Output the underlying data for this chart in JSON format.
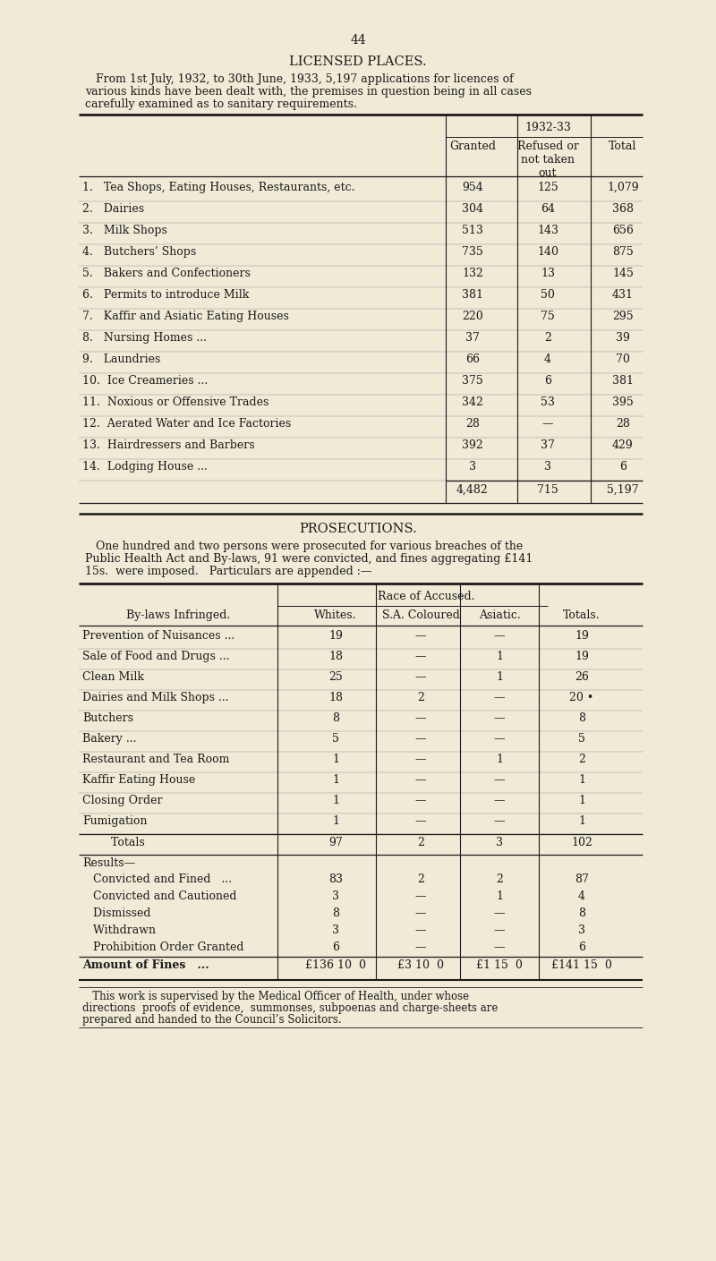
{
  "bg_color": "#f0ead6",
  "text_color": "#1a1a1a",
  "page_number": "44",
  "title1": "LICENSED PLACES.",
  "table1_year_header": "1932-33",
  "table1_rows": [
    [
      "1.   Tea Shops, Eating Houses, Restaurants, etc.",
      "954",
      "125",
      "1,079"
    ],
    [
      "2.   Dairies",
      "304",
      "64",
      "368"
    ],
    [
      "3.   Milk Shops",
      "513",
      "143",
      "656"
    ],
    [
      "4.   Butchers’ Shops",
      "735",
      "140",
      "875"
    ],
    [
      "5.   Bakers and Confectioners",
      "132",
      "13",
      "145"
    ],
    [
      "6.   Permits to introduce Milk",
      "381",
      "50",
      "431"
    ],
    [
      "7.   Kaffir and Asiatic Eating Houses",
      "220",
      "75",
      "295"
    ],
    [
      "8.   Nursing Homes ...",
      "37",
      "2",
      "39"
    ],
    [
      "9.   Laundries",
      "66",
      "4",
      "70"
    ],
    [
      "10.  Ice Creameries ...",
      "375",
      "6",
      "381"
    ],
    [
      "11.  Noxious or Offensive Trades",
      "342",
      "53",
      "395"
    ],
    [
      "12.  Aerated Water and Ice Factories",
      "28",
      "—",
      "28"
    ],
    [
      "13.  Hairdressers and Barbers",
      "392",
      "37",
      "429"
    ],
    [
      "14.  Lodging House ...",
      "3",
      "3",
      "6"
    ]
  ],
  "table1_totals": [
    "4,482",
    "715",
    "5,197"
  ],
  "title2": "PROSECUTIONS.",
  "table2_race_header": "Race of Accused.",
  "table2_col_headers": [
    "By-laws Infringed.",
    "Whites.",
    "S.A. Coloured",
    "Asiatic.",
    "Totals."
  ],
  "table2_rows": [
    [
      "Prevention of Nuisances ...",
      "19",
      "—",
      "—",
      "19"
    ],
    [
      "Sale of Food and Drugs ...",
      "18",
      "—",
      "1",
      "19"
    ],
    [
      "Clean Milk",
      "25",
      "—",
      "1",
      "26"
    ],
    [
      "Dairies and Milk Shops ...",
      "18",
      "2",
      "—",
      "20 •"
    ],
    [
      "Butchers",
      "8",
      "—",
      "—",
      "8"
    ],
    [
      "Bakery ...",
      "5",
      "—",
      "—",
      "5"
    ],
    [
      "Restaurant and Tea Room",
      "1",
      "—",
      "1",
      "2"
    ],
    [
      "Kaffir Eating House",
      "1",
      "—",
      "—",
      "1"
    ],
    [
      "Closing Order",
      "1",
      "—",
      "—",
      "1"
    ],
    [
      "Fumigation",
      "1",
      "—",
      "—",
      "1"
    ]
  ],
  "table2_totals_row": [
    "        Totals",
    "97",
    "2",
    "3",
    "102"
  ],
  "table2_results_label": "Results—",
  "table2_results_rows": [
    [
      "   Convicted and Fined   ...",
      "83",
      "2",
      "2",
      "87"
    ],
    [
      "   Convicted and Cautioned",
      "3",
      "—",
      "1",
      "4"
    ],
    [
      "   Dismissed",
      "8",
      "—",
      "—",
      "8"
    ],
    [
      "   Withdrawn",
      "3",
      "—",
      "—",
      "3"
    ],
    [
      "   Prohibition Order Granted",
      "6",
      "—",
      "—",
      "6"
    ]
  ],
  "table2_fines_label": "Amount of Fines   ...",
  "table2_fines_row": [
    "£136 10  0",
    "£3 10  0",
    "£1 15  0",
    "£141 15  0"
  ],
  "footer_lines": [
    "   This work is supervised by the Medical Officer of Health, under whose",
    "directions  proofs of evidence,  summonses, subpoenas and charge-sheets are",
    "prepared and handed to the Council’s Solicitors."
  ],
  "intro1_lines": [
    "   From 1st July, 1932, to 30th June, 1933, 5,197 applications for licences of",
    "various kinds have been dealt with, the premises in question being in all cases",
    "carefully examined as to sanitary requirements."
  ],
  "intro2_lines": [
    "   One hundred and two persons were prosecuted for various breaches of the",
    "Public Health Act and By-laws, 91 were convicted, and fines aggregating £141",
    "15s.  were imposed.   Particulars are appended :—"
  ]
}
